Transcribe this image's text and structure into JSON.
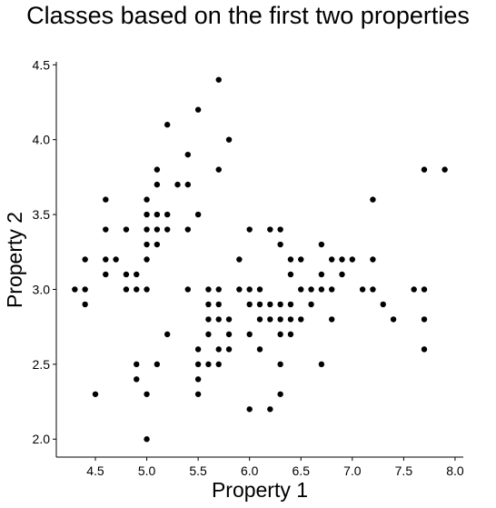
{
  "chart_data": {
    "type": "scatter",
    "title": "Classes based on the first two properties",
    "xlabel": "Property 1",
    "ylabel": "Property 2",
    "xlim": [
      4.12,
      8.08
    ],
    "ylim": [
      1.88,
      4.52
    ],
    "xticks": [
      4.5,
      5.0,
      5.5,
      6.0,
      6.5,
      7.0,
      7.5,
      8.0
    ],
    "yticks": [
      2.0,
      2.5,
      3.0,
      3.5,
      4.0,
      4.5
    ],
    "xtick_labels": [
      "4.5",
      "5.0",
      "5.5",
      "6.0",
      "6.5",
      "7.0",
      "7.5",
      "8.0"
    ],
    "ytick_labels": [
      "2.0",
      "2.5",
      "3.0",
      "3.5",
      "4.0",
      "4.5"
    ],
    "grid": false,
    "marker_color": "#000000",
    "points": [
      [
        4.3,
        3.0
      ],
      [
        4.4,
        3.2
      ],
      [
        4.4,
        3.0
      ],
      [
        4.4,
        2.9
      ],
      [
        4.5,
        2.3
      ],
      [
        4.6,
        3.6
      ],
      [
        4.6,
        3.4
      ],
      [
        4.6,
        3.2
      ],
      [
        4.6,
        3.1
      ],
      [
        4.7,
        3.2
      ],
      [
        4.8,
        3.4
      ],
      [
        4.8,
        3.1
      ],
      [
        4.8,
        3.0
      ],
      [
        4.9,
        3.1
      ],
      [
        4.9,
        3.0
      ],
      [
        4.9,
        2.5
      ],
      [
        4.9,
        2.4
      ],
      [
        5.0,
        3.6
      ],
      [
        5.0,
        3.5
      ],
      [
        5.0,
        3.4
      ],
      [
        5.0,
        3.3
      ],
      [
        5.0,
        3.2
      ],
      [
        5.0,
        3.0
      ],
      [
        5.0,
        2.3
      ],
      [
        5.0,
        2.0
      ],
      [
        5.1,
        3.8
      ],
      [
        5.1,
        3.7
      ],
      [
        5.1,
        3.5
      ],
      [
        5.1,
        3.4
      ],
      [
        5.1,
        3.3
      ],
      [
        5.1,
        2.5
      ],
      [
        5.2,
        4.1
      ],
      [
        5.2,
        3.5
      ],
      [
        5.2,
        3.4
      ],
      [
        5.2,
        2.7
      ],
      [
        5.3,
        3.7
      ],
      [
        5.4,
        3.9
      ],
      [
        5.4,
        3.7
      ],
      [
        5.4,
        3.4
      ],
      [
        5.4,
        3.0
      ],
      [
        5.5,
        4.2
      ],
      [
        5.5,
        3.5
      ],
      [
        5.5,
        2.6
      ],
      [
        5.5,
        2.5
      ],
      [
        5.5,
        2.4
      ],
      [
        5.5,
        2.3
      ],
      [
        5.6,
        3.0
      ],
      [
        5.6,
        2.9
      ],
      [
        5.6,
        2.8
      ],
      [
        5.6,
        2.7
      ],
      [
        5.6,
        2.5
      ],
      [
        5.7,
        4.4
      ],
      [
        5.7,
        3.8
      ],
      [
        5.7,
        3.0
      ],
      [
        5.7,
        2.9
      ],
      [
        5.7,
        2.8
      ],
      [
        5.7,
        2.6
      ],
      [
        5.7,
        2.5
      ],
      [
        5.8,
        4.0
      ],
      [
        5.8,
        2.8
      ],
      [
        5.8,
        2.7
      ],
      [
        5.8,
        2.6
      ],
      [
        5.9,
        3.2
      ],
      [
        5.9,
        3.0
      ],
      [
        6.0,
        3.4
      ],
      [
        6.0,
        3.0
      ],
      [
        6.0,
        2.9
      ],
      [
        6.0,
        2.7
      ],
      [
        6.0,
        2.2
      ],
      [
        6.1,
        3.0
      ],
      [
        6.1,
        2.9
      ],
      [
        6.1,
        2.8
      ],
      [
        6.1,
        2.6
      ],
      [
        6.2,
        3.4
      ],
      [
        6.2,
        2.9
      ],
      [
        6.2,
        2.8
      ],
      [
        6.2,
        2.2
      ],
      [
        6.3,
        3.4
      ],
      [
        6.3,
        3.3
      ],
      [
        6.3,
        2.9
      ],
      [
        6.3,
        2.8
      ],
      [
        6.3,
        2.7
      ],
      [
        6.3,
        2.5
      ],
      [
        6.3,
        2.3
      ],
      [
        6.4,
        3.2
      ],
      [
        6.4,
        3.1
      ],
      [
        6.4,
        2.9
      ],
      [
        6.4,
        2.8
      ],
      [
        6.4,
        2.7
      ],
      [
        6.5,
        3.2
      ],
      [
        6.5,
        3.0
      ],
      [
        6.5,
        2.8
      ],
      [
        6.6,
        3.0
      ],
      [
        6.6,
        2.9
      ],
      [
        6.7,
        3.3
      ],
      [
        6.7,
        3.1
      ],
      [
        6.7,
        3.0
      ],
      [
        6.7,
        2.5
      ],
      [
        6.8,
        3.2
      ],
      [
        6.8,
        3.0
      ],
      [
        6.8,
        2.8
      ],
      [
        6.9,
        3.2
      ],
      [
        6.9,
        3.1
      ],
      [
        7.0,
        3.2
      ],
      [
        7.1,
        3.0
      ],
      [
        7.2,
        3.6
      ],
      [
        7.2,
        3.2
      ],
      [
        7.2,
        3.0
      ],
      [
        7.3,
        2.9
      ],
      [
        7.4,
        2.8
      ],
      [
        7.6,
        3.0
      ],
      [
        7.7,
        3.8
      ],
      [
        7.7,
        3.0
      ],
      [
        7.7,
        2.8
      ],
      [
        7.7,
        2.6
      ],
      [
        7.9,
        3.8
      ]
    ]
  }
}
